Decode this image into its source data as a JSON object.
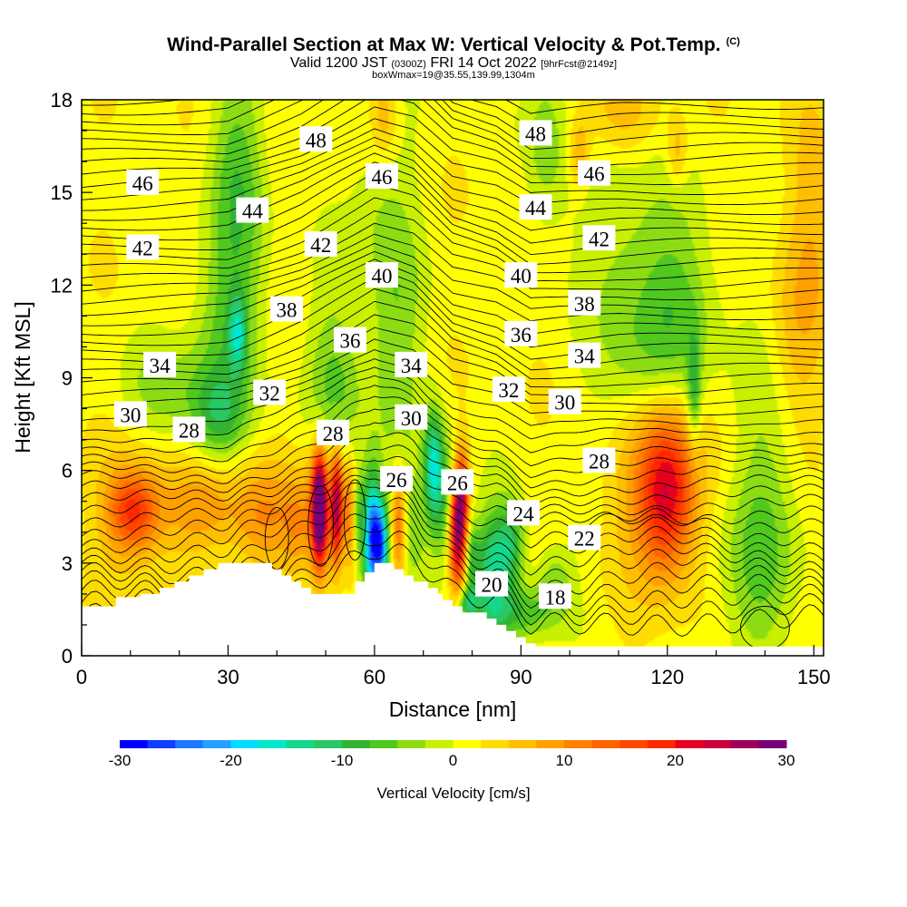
{
  "header": {
    "title": "Wind-Parallel Section at Max W: Vertical Velocity & Pot.Temp.",
    "title_mark": "(C)",
    "valid": "Valid 1200 JST",
    "valid_utc": "(0300Z)",
    "date": "FRI 14 Oct 2022",
    "fcst": "[9hrFcst@2149z]",
    "boxline": "boxWmax=19@35.55,139.99,1304m"
  },
  "chart_data": {
    "type": "heatmap",
    "xlabel": "Distance [nm]",
    "ylabel": "Height [Kft MSL]",
    "xlim": [
      0,
      152
    ],
    "ylim": [
      0,
      18
    ],
    "xticks": [
      0,
      30,
      60,
      90,
      120,
      150
    ],
    "yticks": [
      0,
      3,
      6,
      9,
      12,
      15,
      18
    ],
    "colorbar": {
      "label": "Vertical Velocity [cm/s]",
      "range": [
        -30,
        30
      ],
      "ticks": [
        -30,
        -20,
        -10,
        0,
        10,
        20,
        30
      ],
      "colors": [
        "#0000ff",
        "#0d40ff",
        "#1e78ff",
        "#28a0ff",
        "#00dcff",
        "#00e8c8",
        "#14d78c",
        "#28c864",
        "#32b432",
        "#50c81e",
        "#8cdc14",
        "#c8f000",
        "#ffff00",
        "#ffdc00",
        "#ffbe00",
        "#ffa000",
        "#ff8200",
        "#ff6400",
        "#ff4600",
        "#ff2800",
        "#e6001e",
        "#c8003c",
        "#a0005a",
        "#780078"
      ]
    },
    "terrain": [
      [
        0,
        1.6
      ],
      [
        7,
        1.6
      ],
      [
        7,
        1.9
      ],
      [
        12,
        1.9
      ],
      [
        12,
        2.0
      ],
      [
        16,
        2.0
      ],
      [
        16,
        2.2
      ],
      [
        19,
        2.2
      ],
      [
        19,
        2.4
      ],
      [
        22,
        2.4
      ],
      [
        22,
        2.6
      ],
      [
        25,
        2.6
      ],
      [
        25,
        2.8
      ],
      [
        28,
        2.8
      ],
      [
        28,
        3.0
      ],
      [
        39,
        3.0
      ],
      [
        39,
        2.8
      ],
      [
        41,
        2.8
      ],
      [
        41,
        2.6
      ],
      [
        43,
        2.6
      ],
      [
        43,
        2.4
      ],
      [
        45,
        2.4
      ],
      [
        45,
        2.2
      ],
      [
        47,
        2.2
      ],
      [
        47,
        2.0
      ],
      [
        56,
        2.0
      ],
      [
        56,
        2.4
      ],
      [
        58,
        2.4
      ],
      [
        58,
        2.7
      ],
      [
        60,
        2.7
      ],
      [
        60,
        3.0
      ],
      [
        64,
        3.0
      ],
      [
        64,
        2.8
      ],
      [
        66,
        2.8
      ],
      [
        66,
        2.6
      ],
      [
        68,
        2.6
      ],
      [
        68,
        2.4
      ],
      [
        71,
        2.4
      ],
      [
        71,
        2.2
      ],
      [
        73,
        2.2
      ],
      [
        73,
        2.0
      ],
      [
        74,
        2.0
      ],
      [
        74,
        1.8
      ],
      [
        76,
        1.8
      ],
      [
        76,
        1.6
      ],
      [
        78,
        1.6
      ],
      [
        78,
        1.4
      ],
      [
        83,
        1.4
      ],
      [
        83,
        1.2
      ],
      [
        85,
        1.2
      ],
      [
        85,
        1.0
      ],
      [
        87,
        1.0
      ],
      [
        87,
        0.8
      ],
      [
        89,
        0.8
      ],
      [
        89,
        0.6
      ],
      [
        91,
        0.6
      ],
      [
        91,
        0.4
      ],
      [
        93,
        0.4
      ],
      [
        93,
        0.3
      ],
      [
        152,
        0.3
      ]
    ],
    "w_cells": [
      {
        "x": 10.5,
        "z": 4.7,
        "sx": 3.5,
        "sz": 0.9,
        "w": 13
      },
      {
        "x": 12,
        "z": 4.5,
        "sx": 7,
        "sz": 1.8,
        "w": 5
      },
      {
        "x": 25,
        "z": 4.8,
        "sx": 5,
        "sz": 1.0,
        "w": 6
      },
      {
        "x": 37,
        "z": 4.5,
        "sx": 5,
        "sz": 1.3,
        "w": 8
      },
      {
        "x": 44,
        "z": 4.2,
        "sx": 2,
        "sz": 1.2,
        "w": 5
      },
      {
        "x": 48.7,
        "z": 4.8,
        "sx": 1.0,
        "sz": 1.2,
        "w": 28
      },
      {
        "x": 49,
        "z": 4.6,
        "sx": 2.2,
        "sz": 1.7,
        "w": 11
      },
      {
        "x": 52.3,
        "z": 4.9,
        "sx": 0.9,
        "sz": 1.3,
        "w": 22
      },
      {
        "x": 55,
        "z": 4.7,
        "sx": 0.9,
        "sz": 1.3,
        "w": 10
      },
      {
        "x": 56.5,
        "z": 4.6,
        "sx": 0.9,
        "sz": 1.0,
        "w": -8
      },
      {
        "x": 59.5,
        "z": 3.8,
        "sx": 1.3,
        "sz": 1.4,
        "w": -28
      },
      {
        "x": 61.5,
        "z": 3.6,
        "sx": 1.0,
        "sz": 1.0,
        "w": -20
      },
      {
        "x": 65,
        "z": 4.2,
        "sx": 1.0,
        "sz": 1.3,
        "w": 12
      },
      {
        "x": 68,
        "z": 4.0,
        "sx": 2.0,
        "sz": 1.2,
        "w": -5
      },
      {
        "x": 72,
        "z": 6.2,
        "sx": 1.3,
        "sz": 1.2,
        "w": -14
      },
      {
        "x": 74,
        "z": 5.0,
        "sx": 2.0,
        "sz": 1.6,
        "w": -9
      },
      {
        "x": 77,
        "z": 4.0,
        "sx": 1.2,
        "sz": 1.3,
        "w": 25
      },
      {
        "x": 78,
        "z": 5.4,
        "sx": 1.0,
        "sz": 1.0,
        "w": 14
      },
      {
        "x": 80,
        "z": 3.2,
        "sx": 1.0,
        "sz": 0.8,
        "w": -8
      },
      {
        "x": 84,
        "z": 2.8,
        "sx": 2.5,
        "sz": 1.3,
        "w": -14
      },
      {
        "x": 88,
        "z": 3.6,
        "sx": 2,
        "sz": 1.0,
        "w": -10
      },
      {
        "x": 79,
        "z": 1.7,
        "sx": 1.5,
        "sz": 0.4,
        "w": -11
      },
      {
        "x": 90,
        "z": 1.4,
        "sx": 6,
        "sz": 0.6,
        "w": -8
      },
      {
        "x": 97,
        "z": 2.5,
        "sx": 3,
        "sz": 0.8,
        "w": -6
      },
      {
        "x": 120,
        "z": 5.3,
        "sx": 4,
        "sz": 1.8,
        "w": 17
      },
      {
        "x": 117,
        "z": 6.0,
        "sx": 7,
        "sz": 2.5,
        "w": 7
      },
      {
        "x": 125.5,
        "z": 8.5,
        "sx": 1.0,
        "sz": 1.3,
        "w": -9
      },
      {
        "x": 64,
        "z": 10.3,
        "sx": 4,
        "sz": 3,
        "w": -6
      },
      {
        "x": 52,
        "z": 8.8,
        "sx": 4,
        "sz": 2,
        "w": -7
      },
      {
        "x": 30,
        "z": 10.6,
        "sx": 5,
        "sz": 2,
        "w": -7
      },
      {
        "x": 32,
        "z": 10.4,
        "sx": 1.2,
        "sz": 0.8,
        "w": -11
      },
      {
        "x": 28,
        "z": 7.7,
        "sx": 4,
        "sz": 1.0,
        "w": -8
      },
      {
        "x": 18,
        "z": 8.5,
        "sx": 7,
        "sz": 1.2,
        "w": -5
      },
      {
        "x": 32,
        "z": 15.5,
        "sx": 4,
        "sz": 2.5,
        "w": -8
      },
      {
        "x": 95,
        "z": 16.5,
        "sx": 3,
        "sz": 2,
        "w": -6
      },
      {
        "x": 122,
        "z": 11.2,
        "sx": 6,
        "sz": 2.5,
        "w": -7
      },
      {
        "x": 113,
        "z": 9.2,
        "sx": 6,
        "sz": 2,
        "w": -6
      },
      {
        "x": 140,
        "z": 6,
        "sx": 5,
        "sz": 3,
        "w": -4
      },
      {
        "x": 138,
        "z": 2.5,
        "sx": 6,
        "sz": 2,
        "w": -5
      },
      {
        "x": 110,
        "z": 14,
        "sx": 6,
        "sz": 2,
        "w": -4
      },
      {
        "x": 60,
        "z": 15,
        "sx": 5,
        "sz": 2,
        "w": -3
      },
      {
        "x": 62,
        "z": 17.5,
        "sx": 2.0,
        "sz": 1,
        "w": 6
      },
      {
        "x": 102,
        "z": 16.2,
        "sx": 1.5,
        "sz": 0.8,
        "w": 7
      },
      {
        "x": 122,
        "z": 16.3,
        "sx": 1.5,
        "sz": 0.8,
        "w": 6
      },
      {
        "x": 110,
        "z": 17.5,
        "sx": 6,
        "sz": 1.0,
        "w": 5
      },
      {
        "x": 150,
        "z": 14,
        "sx": 4,
        "sz": 3,
        "w": 5
      },
      {
        "x": 146,
        "z": 10,
        "sx": 4,
        "sz": 2,
        "w": 4
      }
    ],
    "theta_base": [
      [
        0,
        1.3
      ],
      [
        30,
        1.4
      ],
      [
        45,
        2.3
      ],
      [
        60,
        3.6
      ],
      [
        68,
        3.2
      ],
      [
        76,
        2.0
      ],
      [
        85,
        1.6
      ],
      [
        92,
        0.9
      ],
      [
        110,
        1.1
      ],
      [
        152,
        1.2
      ]
    ],
    "contour_labels": [
      {
        "text": "48",
        "x": 48,
        "z": 16.7
      },
      {
        "text": "48",
        "x": 93,
        "z": 16.9
      },
      {
        "text": "46",
        "x": 12.5,
        "z": 15.3
      },
      {
        "text": "46",
        "x": 61.5,
        "z": 15.5
      },
      {
        "text": "46",
        "x": 105,
        "z": 15.6
      },
      {
        "text": "44",
        "x": 35,
        "z": 14.4
      },
      {
        "text": "44",
        "x": 93,
        "z": 14.5
      },
      {
        "text": "42",
        "x": 12.5,
        "z": 13.2
      },
      {
        "text": "42",
        "x": 49,
        "z": 13.3
      },
      {
        "text": "42",
        "x": 106,
        "z": 13.5
      },
      {
        "text": "40",
        "x": 61.5,
        "z": 12.3
      },
      {
        "text": "40",
        "x": 90,
        "z": 12.3
      },
      {
        "text": "38",
        "x": 42,
        "z": 11.2
      },
      {
        "text": "38",
        "x": 103,
        "z": 11.4
      },
      {
        "text": "36",
        "x": 55,
        "z": 10.2
      },
      {
        "text": "36",
        "x": 90,
        "z": 10.4
      },
      {
        "text": "34",
        "x": 16,
        "z": 9.4
      },
      {
        "text": "34",
        "x": 67.5,
        "z": 9.4
      },
      {
        "text": "34",
        "x": 103,
        "z": 9.7
      },
      {
        "text": "32",
        "x": 38.5,
        "z": 8.5
      },
      {
        "text": "32",
        "x": 87.5,
        "z": 8.6
      },
      {
        "text": "30",
        "x": 10,
        "z": 7.8
      },
      {
        "text": "30",
        "x": 67.5,
        "z": 7.7
      },
      {
        "text": "30",
        "x": 99,
        "z": 8.2
      },
      {
        "text": "28",
        "x": 22,
        "z": 7.3
      },
      {
        "text": "28",
        "x": 51.5,
        "z": 7.2
      },
      {
        "text": "28",
        "x": 106,
        "z": 6.3
      },
      {
        "text": "26",
        "x": 64.5,
        "z": 5.7
      },
      {
        "text": "26",
        "x": 77,
        "z": 5.6
      },
      {
        "text": "24",
        "x": 90.5,
        "z": 4.6
      },
      {
        "text": "22",
        "x": 103,
        "z": 3.8
      },
      {
        "text": "20",
        "x": 84,
        "z": 2.3
      },
      {
        "text": "18",
        "x": 97,
        "z": 1.9
      }
    ]
  }
}
